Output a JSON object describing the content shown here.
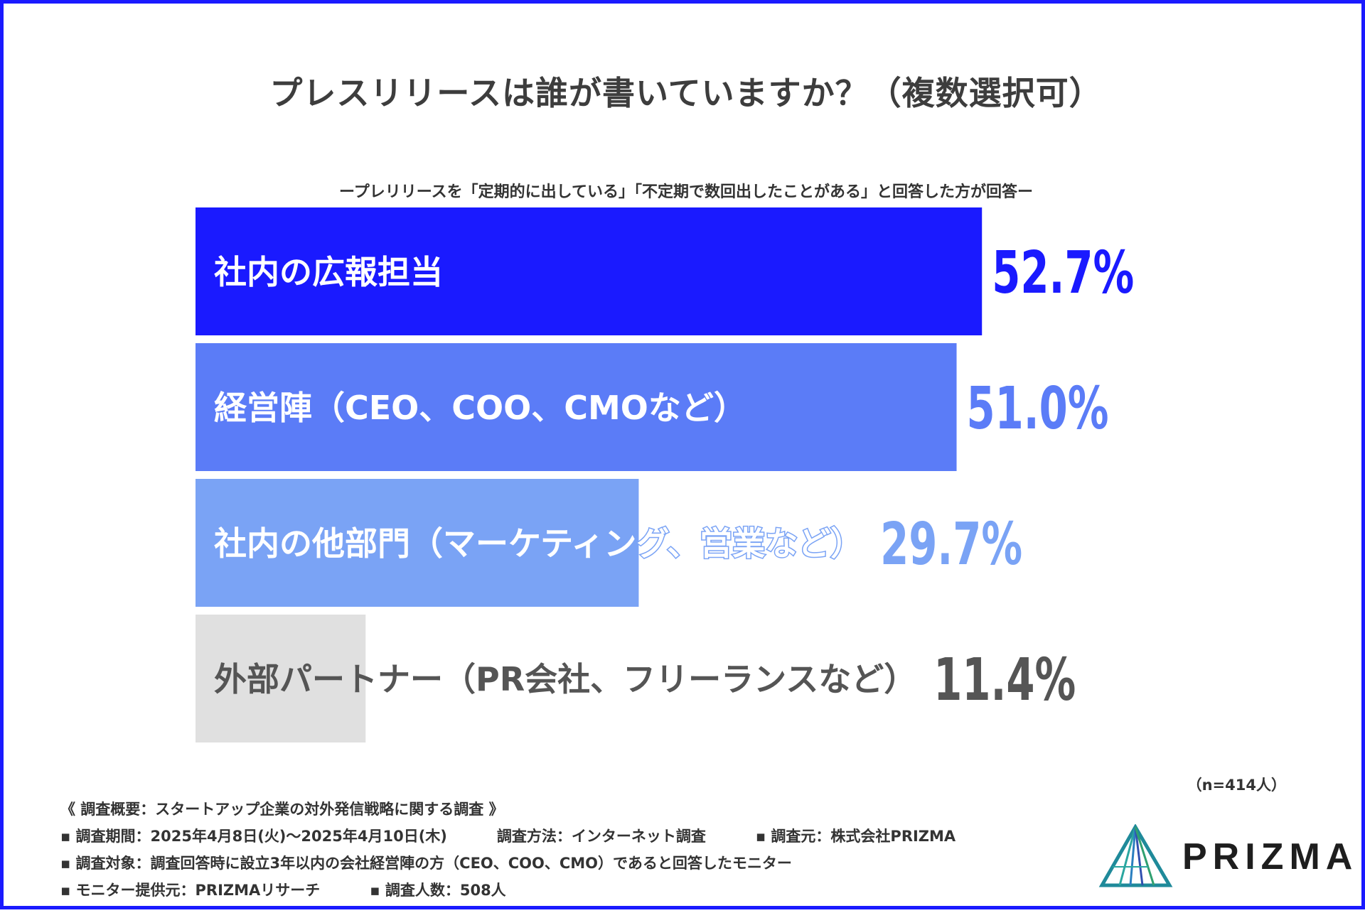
{
  "title": "プレスリリースは誰が書いていますか？（複数選択可）",
  "subtitle": "ープレリリースを「定期的に出している」「不定期で数回出したことがある」と回答した方が回答ー",
  "chart_data": {
    "type": "bar",
    "orientation": "horizontal",
    "categories": [
      "社内の広報担当",
      "経営陣（CEO、COO、CMOなど）",
      "社内の他部門（マーケティング、営業など）",
      "外部パートナー（PR会社、フリーランスなど）"
    ],
    "values": [
      52.7,
      51.0,
      29.7,
      11.4
    ],
    "value_labels": [
      "52.7%",
      "51.0%",
      "29.7%",
      "11.4%"
    ],
    "colors": [
      "#1a1aff",
      "#5b7cf7",
      "#7aa3f5",
      "#e0e0e0"
    ],
    "label_colors": [
      "#ffffff",
      "#ffffff",
      "#ffffff",
      "#555555"
    ],
    "value_colors": [
      "#1a1aff",
      "#5b7cf7",
      "#7aa3f5",
      "#555555"
    ],
    "xlim": [
      0,
      55.5
    ],
    "grid": false,
    "legend": "none"
  },
  "sample_size": "（n=414人）",
  "notes": {
    "summary": "《 調査概要：スタートアップ企業の対外発信戦略に関する調査 》",
    "period": "▪ 調査期間：2025年4月8日(火)〜2025年4月10日(木)",
    "method": "調査方法：インターネット調査",
    "source": "▪ 調査元：株式会社PRIZMA",
    "target": "▪ 調査対象：調査回答時に設立3年以内の会社経営陣の方（CEO、COO、CMO）であると回答したモニター",
    "provider": "▪ モニター提供元：PRIZMAリサーチ",
    "respondents": "▪ 調査人数：508人"
  },
  "logo": {
    "text": "PRIZMA",
    "icon": "prism-triangle-icon"
  }
}
